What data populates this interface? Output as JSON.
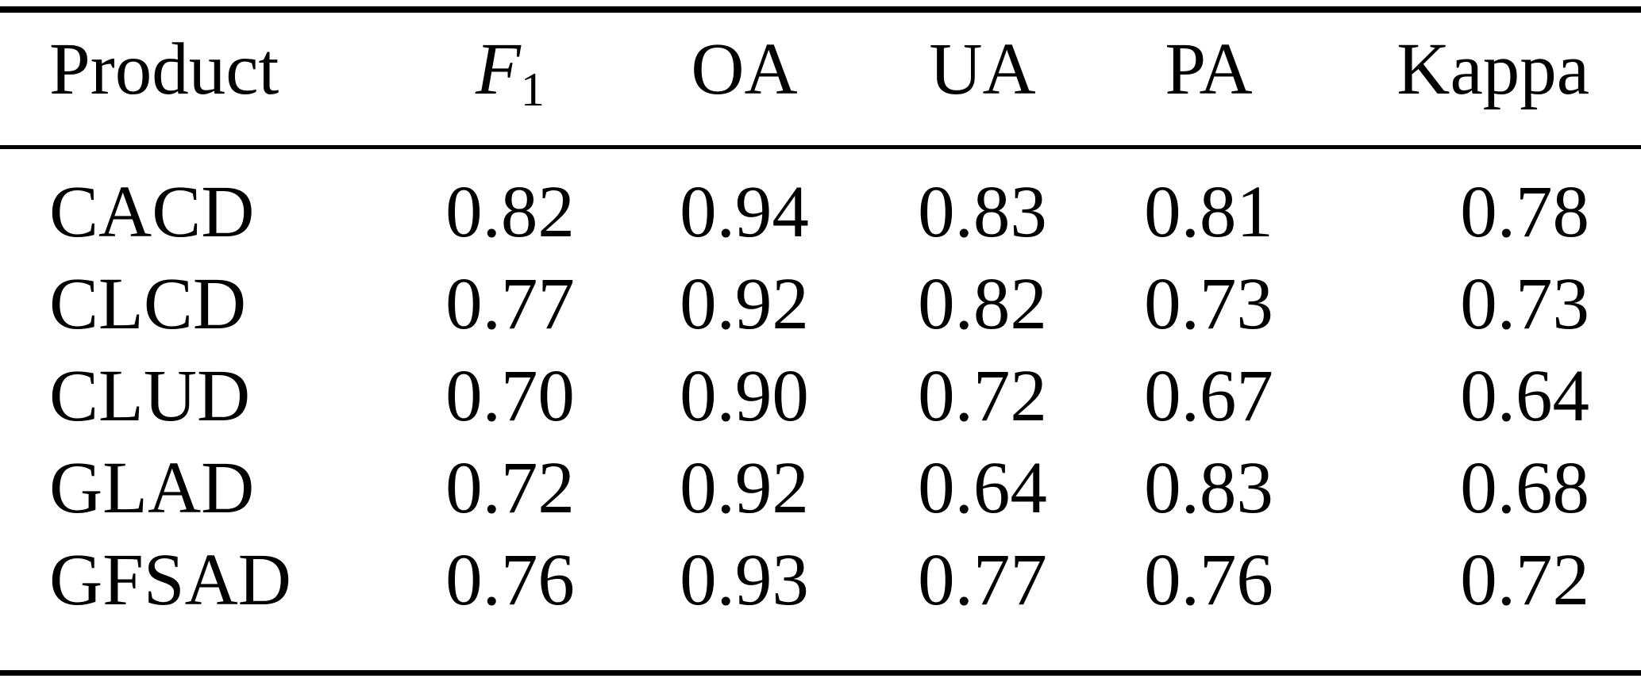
{
  "table": {
    "columns": [
      {
        "id": "product",
        "label": "Product"
      },
      {
        "id": "f1",
        "label": "F",
        "subscript": "1"
      },
      {
        "id": "oa",
        "label": "OA"
      },
      {
        "id": "ua",
        "label": "UA"
      },
      {
        "id": "pa",
        "label": "PA"
      },
      {
        "id": "kappa",
        "label": "Kappa"
      }
    ],
    "rows": [
      {
        "product": "CACD",
        "f1": "0.82",
        "oa": "0.94",
        "ua": "0.83",
        "pa": "0.81",
        "kappa": "0.78"
      },
      {
        "product": "CLCD",
        "f1": "0.77",
        "oa": "0.92",
        "ua": "0.82",
        "pa": "0.73",
        "kappa": "0.73"
      },
      {
        "product": "CLUD",
        "f1": "0.70",
        "oa": "0.90",
        "ua": "0.72",
        "pa": "0.67",
        "kappa": "0.64"
      },
      {
        "product": "GLAD",
        "f1": "0.72",
        "oa": "0.92",
        "ua": "0.64",
        "pa": "0.83",
        "kappa": "0.68"
      },
      {
        "product": "GFSAD",
        "f1": "0.76",
        "oa": "0.93",
        "ua": "0.77",
        "pa": "0.76",
        "kappa": "0.72"
      }
    ]
  },
  "colors": {
    "text": "#000000",
    "background": "#ffffff",
    "rule": "#000000"
  }
}
